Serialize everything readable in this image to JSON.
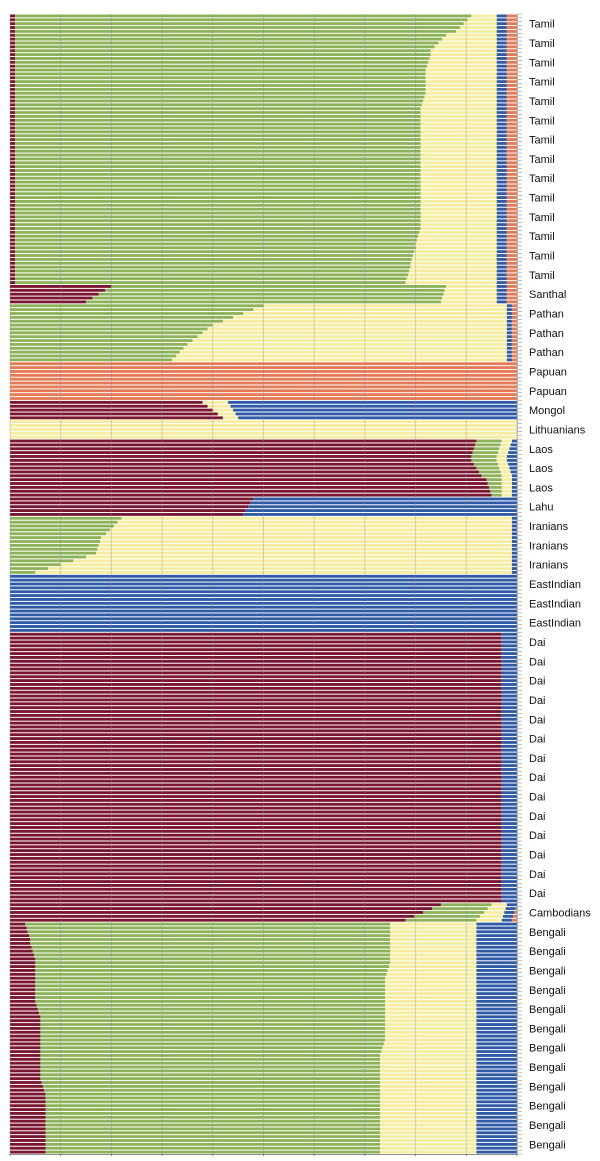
{
  "chart_data": {
    "type": "bar",
    "orientation": "horizontal",
    "stacked": true,
    "normalized": true,
    "xlim": [
      0,
      1
    ],
    "grid": true,
    "legend": "none",
    "colors": {
      "dark_red": "#7b1530",
      "green": "#8db35a",
      "yellow": "#f6eda0",
      "blue": "#2e5aa8",
      "orange": "#e57a57"
    },
    "component_order": [
      "dark_red",
      "green",
      "yellow",
      "blue",
      "orange"
    ],
    "groups": [
      {
        "label": "Tamil",
        "n": 5,
        "start": [
          0.01,
          0.9,
          0.05,
          0.02,
          0.02
        ],
        "end": [
          0.01,
          0.87,
          0.08,
          0.02,
          0.02
        ]
      },
      {
        "label": "Tamil",
        "n": 5,
        "start": [
          0.01,
          0.85,
          0.1,
          0.02,
          0.02
        ],
        "end": [
          0.01,
          0.82,
          0.13,
          0.02,
          0.02
        ]
      },
      {
        "label": "Tamil",
        "n": 5,
        "start": [
          0.01,
          0.82,
          0.13,
          0.02,
          0.02
        ],
        "end": [
          0.01,
          0.81,
          0.14,
          0.02,
          0.02
        ]
      },
      {
        "label": "Tamil",
        "n": 5,
        "start": [
          0.01,
          0.81,
          0.14,
          0.02,
          0.02
        ],
        "end": [
          0.01,
          0.81,
          0.14,
          0.02,
          0.02
        ]
      },
      {
        "label": "Tamil",
        "n": 5,
        "start": [
          0.01,
          0.81,
          0.14,
          0.02,
          0.02
        ],
        "end": [
          0.01,
          0.8,
          0.15,
          0.02,
          0.02
        ]
      },
      {
        "label": "Tamil",
        "n": 5,
        "start": [
          0.01,
          0.8,
          0.15,
          0.02,
          0.02
        ],
        "end": [
          0.01,
          0.8,
          0.15,
          0.02,
          0.02
        ]
      },
      {
        "label": "Tamil",
        "n": 5,
        "start": [
          0.01,
          0.8,
          0.15,
          0.02,
          0.02
        ],
        "end": [
          0.01,
          0.8,
          0.15,
          0.02,
          0.02
        ]
      },
      {
        "label": "Tamil",
        "n": 5,
        "start": [
          0.01,
          0.8,
          0.15,
          0.02,
          0.02
        ],
        "end": [
          0.01,
          0.8,
          0.15,
          0.02,
          0.02
        ]
      },
      {
        "label": "Tamil",
        "n": 5,
        "start": [
          0.01,
          0.8,
          0.15,
          0.02,
          0.02
        ],
        "end": [
          0.01,
          0.8,
          0.15,
          0.02,
          0.02
        ]
      },
      {
        "label": "Tamil",
        "n": 5,
        "start": [
          0.01,
          0.8,
          0.15,
          0.02,
          0.02
        ],
        "end": [
          0.01,
          0.8,
          0.15,
          0.02,
          0.02
        ]
      },
      {
        "label": "Tamil",
        "n": 5,
        "start": [
          0.01,
          0.8,
          0.15,
          0.02,
          0.02
        ],
        "end": [
          0.01,
          0.8,
          0.15,
          0.02,
          0.02
        ]
      },
      {
        "label": "Tamil",
        "n": 5,
        "start": [
          0.01,
          0.8,
          0.15,
          0.02,
          0.02
        ],
        "end": [
          0.01,
          0.79,
          0.16,
          0.02,
          0.02
        ]
      },
      {
        "label": "Tamil",
        "n": 5,
        "start": [
          0.01,
          0.79,
          0.16,
          0.02,
          0.02
        ],
        "end": [
          0.01,
          0.78,
          0.17,
          0.02,
          0.02
        ]
      },
      {
        "label": "Tamil",
        "n": 5,
        "start": [
          0.01,
          0.78,
          0.17,
          0.02,
          0.02
        ],
        "end": [
          0.01,
          0.77,
          0.18,
          0.02,
          0.02
        ]
      },
      {
        "label": "Santhal",
        "n": 5,
        "start": [
          0.2,
          0.66,
          0.1,
          0.02,
          0.02
        ],
        "end": [
          0.15,
          0.7,
          0.11,
          0.02,
          0.02
        ]
      },
      {
        "label": "Pathan",
        "n": 5,
        "start": [
          0.0,
          0.5,
          0.48,
          0.01,
          0.01
        ],
        "end": [
          0.0,
          0.42,
          0.56,
          0.01,
          0.01
        ]
      },
      {
        "label": "Pathan",
        "n": 5,
        "start": [
          0.0,
          0.4,
          0.58,
          0.01,
          0.01
        ],
        "end": [
          0.0,
          0.36,
          0.62,
          0.01,
          0.01
        ]
      },
      {
        "label": "Pathan",
        "n": 5,
        "start": [
          0.0,
          0.35,
          0.63,
          0.01,
          0.01
        ],
        "end": [
          0.0,
          0.32,
          0.66,
          0.01,
          0.01
        ]
      },
      {
        "label": "Papuan",
        "n": 5,
        "start": [
          0.0,
          0.0,
          0.0,
          0.0,
          1.0
        ],
        "end": [
          0.0,
          0.0,
          0.0,
          0.0,
          1.0
        ]
      },
      {
        "label": "Papuan",
        "n": 5,
        "start": [
          0.0,
          0.0,
          0.0,
          0.0,
          1.0
        ],
        "end": [
          0.0,
          0.0,
          0.0,
          0.0,
          1.0
        ]
      },
      {
        "label": "Mongol",
        "n": 5,
        "start": [
          0.38,
          0.0,
          0.05,
          0.57,
          0.0
        ],
        "end": [
          0.42,
          0.0,
          0.03,
          0.55,
          0.0
        ]
      },
      {
        "label": "Lithuanians",
        "n": 5,
        "start": [
          0.0,
          0.0,
          1.0,
          0.0,
          0.0
        ],
        "end": [
          0.0,
          0.0,
          1.0,
          0.0,
          0.0
        ]
      },
      {
        "label": "Laos",
        "n": 5,
        "start": [
          0.92,
          0.05,
          0.02,
          0.01,
          0.0
        ],
        "end": [
          0.91,
          0.05,
          0.02,
          0.02,
          0.0
        ]
      },
      {
        "label": "Laos",
        "n": 5,
        "start": [
          0.91,
          0.05,
          0.02,
          0.02,
          0.0
        ],
        "end": [
          0.93,
          0.04,
          0.02,
          0.01,
          0.0
        ]
      },
      {
        "label": "Laos",
        "n": 5,
        "start": [
          0.94,
          0.03,
          0.02,
          0.01,
          0.0
        ],
        "end": [
          0.95,
          0.02,
          0.02,
          0.01,
          0.0
        ]
      },
      {
        "label": "Lahu",
        "n": 5,
        "start": [
          0.48,
          0.0,
          0.0,
          0.52,
          0.0
        ],
        "end": [
          0.46,
          0.0,
          0.0,
          0.54,
          0.0
        ]
      },
      {
        "label": "Iranians",
        "n": 5,
        "start": [
          0.0,
          0.22,
          0.77,
          0.01,
          0.0
        ],
        "end": [
          0.0,
          0.19,
          0.8,
          0.01,
          0.0
        ]
      },
      {
        "label": "Iranians",
        "n": 5,
        "start": [
          0.0,
          0.18,
          0.81,
          0.01,
          0.0
        ],
        "end": [
          0.0,
          0.17,
          0.82,
          0.01,
          0.0
        ]
      },
      {
        "label": "Iranians",
        "n": 5,
        "start": [
          0.0,
          0.15,
          0.84,
          0.01,
          0.0
        ],
        "end": [
          0.0,
          0.05,
          0.94,
          0.01,
          0.0
        ]
      },
      {
        "label": "EastIndian",
        "n": 5,
        "start": [
          0.0,
          0.0,
          0.0,
          1.0,
          0.0
        ],
        "end": [
          0.0,
          0.0,
          0.0,
          1.0,
          0.0
        ]
      },
      {
        "label": "EastIndian",
        "n": 5,
        "start": [
          0.0,
          0.0,
          0.0,
          1.0,
          0.0
        ],
        "end": [
          0.0,
          0.0,
          0.0,
          1.0,
          0.0
        ]
      },
      {
        "label": "EastIndian",
        "n": 5,
        "start": [
          0.0,
          0.0,
          0.0,
          1.0,
          0.0
        ],
        "end": [
          0.0,
          0.0,
          0.0,
          1.0,
          0.0
        ]
      },
      {
        "label": "Dai",
        "n": 5,
        "start": [
          0.97,
          0.0,
          0.0,
          0.03,
          0.0
        ],
        "end": [
          0.97,
          0.0,
          0.0,
          0.03,
          0.0
        ]
      },
      {
        "label": "Dai",
        "n": 5,
        "start": [
          0.97,
          0.0,
          0.0,
          0.03,
          0.0
        ],
        "end": [
          0.97,
          0.0,
          0.0,
          0.03,
          0.0
        ]
      },
      {
        "label": "Dai",
        "n": 5,
        "start": [
          0.97,
          0.0,
          0.0,
          0.03,
          0.0
        ],
        "end": [
          0.97,
          0.0,
          0.0,
          0.03,
          0.0
        ]
      },
      {
        "label": "Dai",
        "n": 5,
        "start": [
          0.97,
          0.0,
          0.0,
          0.03,
          0.0
        ],
        "end": [
          0.97,
          0.0,
          0.0,
          0.03,
          0.0
        ]
      },
      {
        "label": "Dai",
        "n": 5,
        "start": [
          0.97,
          0.0,
          0.0,
          0.03,
          0.0
        ],
        "end": [
          0.97,
          0.0,
          0.0,
          0.03,
          0.0
        ]
      },
      {
        "label": "Dai",
        "n": 5,
        "start": [
          0.97,
          0.0,
          0.0,
          0.03,
          0.0
        ],
        "end": [
          0.97,
          0.0,
          0.0,
          0.03,
          0.0
        ]
      },
      {
        "label": "Dai",
        "n": 5,
        "start": [
          0.97,
          0.0,
          0.0,
          0.03,
          0.0
        ],
        "end": [
          0.97,
          0.0,
          0.0,
          0.03,
          0.0
        ]
      },
      {
        "label": "Dai",
        "n": 5,
        "start": [
          0.97,
          0.0,
          0.0,
          0.03,
          0.0
        ],
        "end": [
          0.97,
          0.0,
          0.0,
          0.03,
          0.0
        ]
      },
      {
        "label": "Dai",
        "n": 5,
        "start": [
          0.97,
          0.0,
          0.0,
          0.03,
          0.0
        ],
        "end": [
          0.97,
          0.0,
          0.0,
          0.03,
          0.0
        ]
      },
      {
        "label": "Dai",
        "n": 5,
        "start": [
          0.97,
          0.0,
          0.0,
          0.03,
          0.0
        ],
        "end": [
          0.97,
          0.0,
          0.0,
          0.03,
          0.0
        ]
      },
      {
        "label": "Dai",
        "n": 5,
        "start": [
          0.97,
          0.0,
          0.0,
          0.03,
          0.0
        ],
        "end": [
          0.97,
          0.0,
          0.0,
          0.03,
          0.0
        ]
      },
      {
        "label": "Dai",
        "n": 5,
        "start": [
          0.97,
          0.0,
          0.0,
          0.03,
          0.0
        ],
        "end": [
          0.97,
          0.0,
          0.0,
          0.03,
          0.0
        ]
      },
      {
        "label": "Dai",
        "n": 5,
        "start": [
          0.97,
          0.0,
          0.0,
          0.03,
          0.0
        ],
        "end": [
          0.97,
          0.0,
          0.0,
          0.03,
          0.0
        ]
      },
      {
        "label": "Dai",
        "n": 5,
        "start": [
          0.97,
          0.0,
          0.0,
          0.03,
          0.0
        ],
        "end": [
          0.97,
          0.0,
          0.0,
          0.03,
          0.0
        ]
      },
      {
        "label": "Cambodians",
        "n": 5,
        "start": [
          0.85,
          0.1,
          0.03,
          0.02,
          0.0
        ],
        "end": [
          0.78,
          0.14,
          0.05,
          0.02,
          0.01
        ]
      },
      {
        "label": "Bengali",
        "n": 5,
        "start": [
          0.03,
          0.72,
          0.17,
          0.08,
          0.0
        ],
        "end": [
          0.04,
          0.71,
          0.17,
          0.08,
          0.0
        ]
      },
      {
        "label": "Bengali",
        "n": 5,
        "start": [
          0.04,
          0.71,
          0.17,
          0.08,
          0.0
        ],
        "end": [
          0.05,
          0.7,
          0.17,
          0.08,
          0.0
        ]
      },
      {
        "label": "Bengali",
        "n": 5,
        "start": [
          0.05,
          0.7,
          0.17,
          0.08,
          0.0
        ],
        "end": [
          0.05,
          0.69,
          0.18,
          0.08,
          0.0
        ]
      },
      {
        "label": "Bengali",
        "n": 5,
        "start": [
          0.05,
          0.69,
          0.18,
          0.08,
          0.0
        ],
        "end": [
          0.05,
          0.69,
          0.18,
          0.08,
          0.0
        ]
      },
      {
        "label": "Bengali",
        "n": 5,
        "start": [
          0.05,
          0.69,
          0.18,
          0.08,
          0.0
        ],
        "end": [
          0.06,
          0.68,
          0.18,
          0.08,
          0.0
        ]
      },
      {
        "label": "Bengali",
        "n": 5,
        "start": [
          0.06,
          0.68,
          0.18,
          0.08,
          0.0
        ],
        "end": [
          0.06,
          0.68,
          0.18,
          0.08,
          0.0
        ]
      },
      {
        "label": "Bengali",
        "n": 5,
        "start": [
          0.06,
          0.68,
          0.18,
          0.08,
          0.0
        ],
        "end": [
          0.06,
          0.67,
          0.19,
          0.08,
          0.0
        ]
      },
      {
        "label": "Bengali",
        "n": 5,
        "start": [
          0.06,
          0.67,
          0.19,
          0.08,
          0.0
        ],
        "end": [
          0.06,
          0.67,
          0.19,
          0.08,
          0.0
        ]
      },
      {
        "label": "Bengali",
        "n": 5,
        "start": [
          0.06,
          0.67,
          0.19,
          0.08,
          0.0
        ],
        "end": [
          0.07,
          0.66,
          0.19,
          0.08,
          0.0
        ]
      },
      {
        "label": "Bengali",
        "n": 5,
        "start": [
          0.07,
          0.66,
          0.19,
          0.08,
          0.0
        ],
        "end": [
          0.07,
          0.66,
          0.19,
          0.08,
          0.0
        ]
      },
      {
        "label": "Bengali",
        "n": 5,
        "start": [
          0.07,
          0.66,
          0.19,
          0.08,
          0.0
        ],
        "end": [
          0.07,
          0.66,
          0.19,
          0.08,
          0.0
        ]
      },
      {
        "label": "Bengali",
        "n": 5,
        "start": [
          0.07,
          0.66,
          0.19,
          0.08,
          0.0
        ],
        "end": [
          0.07,
          0.66,
          0.19,
          0.08,
          0.0
        ]
      }
    ]
  }
}
